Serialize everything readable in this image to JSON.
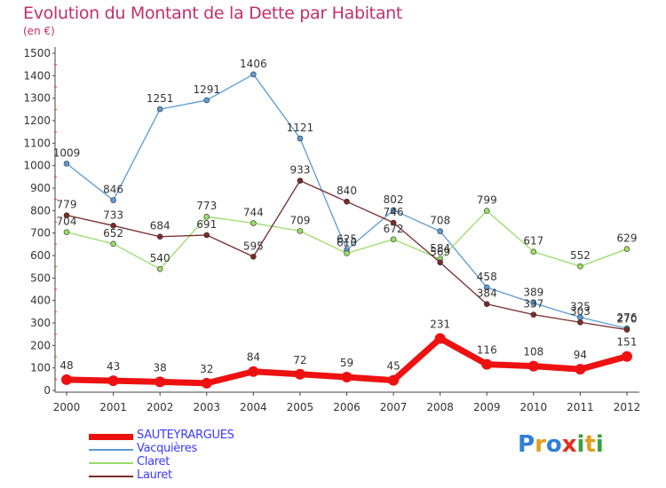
{
  "title": "Evolution du Montant de la Dette par Habitant",
  "unit_label": "(en €)",
  "logo_letters": [
    {
      "ch": "P",
      "color": "#2f7fd6"
    },
    {
      "ch": "r",
      "color": "#e0a020"
    },
    {
      "ch": "o",
      "color": "#2f7fd6"
    },
    {
      "ch": "x",
      "color": "#e03020"
    },
    {
      "ch": "i",
      "color": "#3aa040"
    },
    {
      "ch": "t",
      "color": "#e0a020"
    },
    {
      "ch": "i",
      "color": "#3aa040"
    }
  ],
  "chart_data": {
    "type": "line",
    "title": "Evolution du Montant de la Dette par Habitant",
    "ylabel": "(en €)",
    "xlabel": "",
    "ylim": [
      0,
      1500
    ],
    "y_ticks": [
      0,
      100,
      200,
      300,
      400,
      500,
      600,
      700,
      800,
      900,
      1000,
      1100,
      1200,
      1300,
      1400,
      1500
    ],
    "x": [
      "2000",
      "2001",
      "2002",
      "2003",
      "2004",
      "2005",
      "2006",
      "2007",
      "2008",
      "2009",
      "2010",
      "2011",
      "2012"
    ],
    "grid": false,
    "legend_position": "bottom-left",
    "series": [
      {
        "name": "SAUTEYRARGUES",
        "color": "#ee1111",
        "highlight": true,
        "values": [
          48,
          43,
          38,
          32,
          84,
          72,
          59,
          45,
          231,
          116,
          108,
          94,
          151
        ]
      },
      {
        "name": "Vacquières",
        "color": "#5b9bd5",
        "highlight": false,
        "values": [
          1009,
          846,
          1251,
          1291,
          1406,
          1121,
          625,
          802,
          708,
          458,
          389,
          325,
          276
        ]
      },
      {
        "name": "Claret",
        "color": "#99dd66",
        "highlight": false,
        "values": [
          704,
          652,
          540,
          773,
          744,
          709,
          610,
          672,
          584,
          799,
          617,
          552,
          629
        ]
      },
      {
        "name": "Lauret",
        "color": "#7a2a2a",
        "highlight": false,
        "values": [
          779,
          733,
          684,
          691,
          595,
          933,
          840,
          746,
          569,
          384,
          337,
          303,
          270
        ]
      }
    ]
  }
}
